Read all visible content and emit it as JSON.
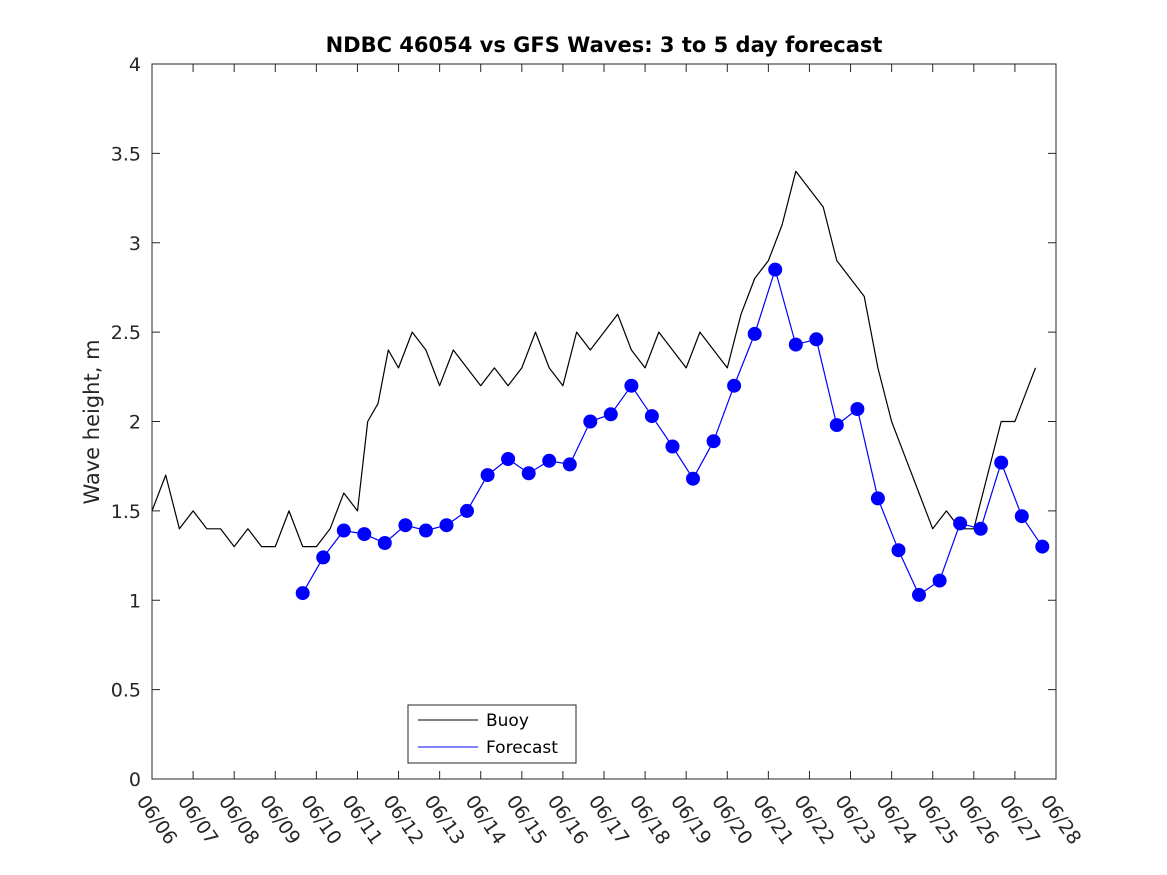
{
  "chart_data": {
    "type": "line",
    "title": "NDBC 46054 vs GFS Waves: 3 to 5 day forecast",
    "xlabel": "",
    "ylabel": "Wave height, m",
    "xlim": [
      "06/06",
      "06/28"
    ],
    "ylim": [
      0,
      4
    ],
    "yticks": [
      "0",
      "0.5",
      "1",
      "1.5",
      "2",
      "2.5",
      "3",
      "3.5",
      "4"
    ],
    "xticks": [
      "06/06",
      "06/07",
      "06/08",
      "06/09",
      "06/10",
      "06/11",
      "06/12",
      "06/13",
      "06/14",
      "06/15",
      "06/16",
      "06/17",
      "06/18",
      "06/19",
      "06/20",
      "06/21",
      "06/22",
      "06/23",
      "06/24",
      "06/25",
      "06/26",
      "06/27",
      "06/28"
    ],
    "grid": false,
    "legend": {
      "placement": "bottom-center",
      "entries": [
        {
          "label": "Buoy",
          "color": "#000000"
        },
        {
          "label": "Forecast",
          "color": "#0000ff"
        }
      ]
    },
    "series": [
      {
        "name": "Buoy",
        "color": "#000000",
        "x": [
          "06/06 00:00",
          "06/06 08:00",
          "06/06 16:00",
          "06/07 00:00",
          "06/07 08:00",
          "06/07 16:00",
          "06/08 00:00",
          "06/08 08:00",
          "06/08 16:00",
          "06/09 00:00",
          "06/09 08:00",
          "06/09 16:00",
          "06/10 00:00",
          "06/10 08:00",
          "06/10 16:00",
          "06/11 00:00",
          "06/11 06:00",
          "06/11 12:00",
          "06/11 18:00",
          "06/12 00:00",
          "06/12 08:00",
          "06/12 16:00",
          "06/13 00:00",
          "06/13 08:00",
          "06/13 16:00",
          "06/14 00:00",
          "06/14 08:00",
          "06/14 16:00",
          "06/15 00:00",
          "06/15 08:00",
          "06/15 16:00",
          "06/16 00:00",
          "06/16 08:00",
          "06/16 16:00",
          "06/17 00:00",
          "06/17 08:00",
          "06/17 16:00",
          "06/18 00:00",
          "06/18 08:00",
          "06/18 16:00",
          "06/19 00:00",
          "06/19 08:00",
          "06/19 16:00",
          "06/20 00:00",
          "06/20 08:00",
          "06/20 16:00",
          "06/21 00:00",
          "06/21 08:00",
          "06/21 16:00",
          "06/22 00:00",
          "06/22 08:00",
          "06/22 16:00",
          "06/23 00:00",
          "06/23 08:00",
          "06/23 16:00",
          "06/24 00:00",
          "06/24 08:00",
          "06/24 16:00",
          "06/25 00:00",
          "06/25 08:00",
          "06/25 16:00",
          "06/26 00:00",
          "06/26 08:00",
          "06/26 16:00",
          "06/27 00:00",
          "06/27 08:00",
          "06/27 12:00"
        ],
        "values": [
          1.5,
          1.7,
          1.4,
          1.5,
          1.4,
          1.4,
          1.3,
          1.4,
          1.3,
          1.3,
          1.5,
          1.3,
          1.3,
          1.4,
          1.6,
          1.5,
          2.0,
          2.1,
          2.4,
          2.3,
          2.5,
          2.4,
          2.2,
          2.4,
          2.3,
          2.2,
          2.3,
          2.2,
          2.3,
          2.5,
          2.3,
          2.2,
          2.5,
          2.4,
          2.5,
          2.6,
          2.4,
          2.3,
          2.5,
          2.4,
          2.3,
          2.5,
          2.4,
          2.3,
          2.6,
          2.8,
          2.9,
          3.1,
          3.4,
          3.3,
          3.2,
          2.9,
          2.8,
          2.7,
          2.3,
          2.0,
          1.8,
          1.6,
          1.4,
          1.5,
          1.4,
          1.4,
          1.7,
          2.0,
          2.0,
          2.2,
          2.3
        ]
      },
      {
        "name": "Forecast",
        "color": "#0000ff",
        "x": [
          "06/09 16:00",
          "06/10 04:00",
          "06/10 16:00",
          "06/11 04:00",
          "06/11 16:00",
          "06/12 04:00",
          "06/12 16:00",
          "06/13 04:00",
          "06/13 16:00",
          "06/14 04:00",
          "06/14 16:00",
          "06/15 04:00",
          "06/15 16:00",
          "06/16 04:00",
          "06/16 16:00",
          "06/17 04:00",
          "06/17 16:00",
          "06/18 04:00",
          "06/18 16:00",
          "06/19 04:00",
          "06/19 16:00",
          "06/20 04:00",
          "06/20 16:00",
          "06/21 04:00",
          "06/21 16:00",
          "06/22 04:00",
          "06/22 16:00",
          "06/23 04:00",
          "06/23 16:00",
          "06/24 04:00",
          "06/24 16:00",
          "06/25 04:00",
          "06/25 16:00",
          "06/26 04:00",
          "06/26 16:00",
          "06/27 04:00",
          "06/27 16:00"
        ],
        "values": [
          1.04,
          1.24,
          1.39,
          1.37,
          1.32,
          1.42,
          1.39,
          1.42,
          1.5,
          1.7,
          1.79,
          1.71,
          1.78,
          1.76,
          2.0,
          2.04,
          2.2,
          2.03,
          1.86,
          1.68,
          1.89,
          2.2,
          2.49,
          2.85,
          2.43,
          2.46,
          1.98,
          2.07,
          1.57,
          1.28,
          1.03,
          1.11,
          1.43,
          1.4,
          1.77,
          1.47,
          1.3
        ]
      }
    ]
  }
}
